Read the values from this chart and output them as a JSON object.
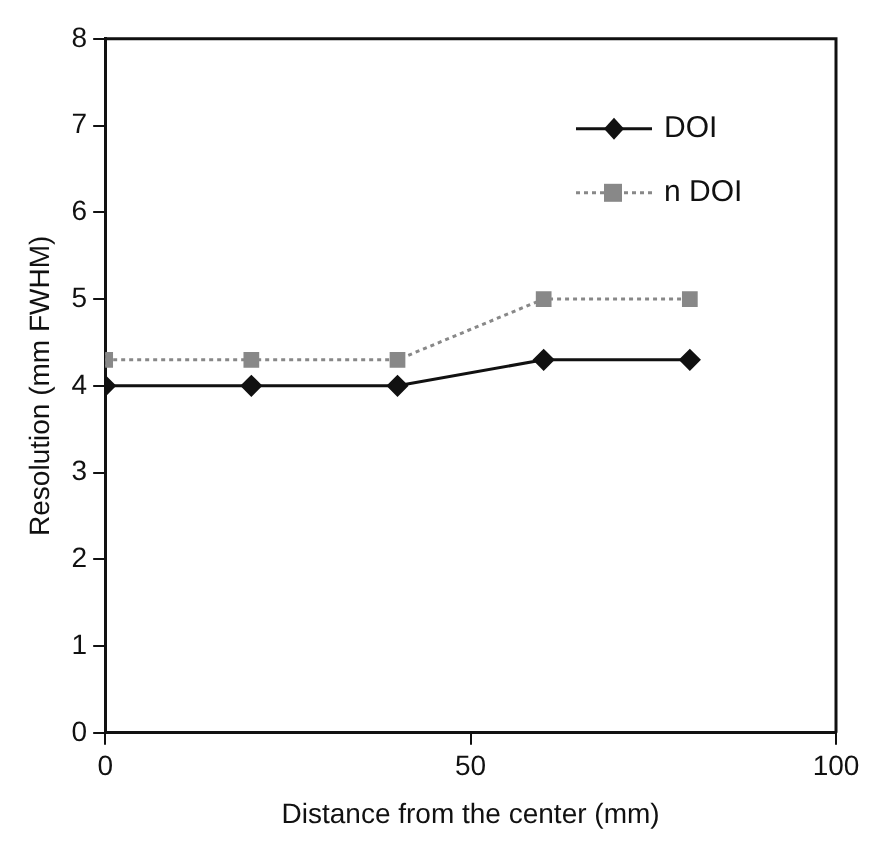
{
  "chart_data": {
    "type": "line",
    "xlabel": "Distance from the center (mm)",
    "ylabel": "Resolution (mm FWHM)",
    "x": [
      0,
      20,
      40,
      60,
      80
    ],
    "series": [
      {
        "name": "DOI",
        "color": "#111111",
        "values": [
          4.0,
          4.0,
          4.0,
          4.3,
          4.3
        ],
        "marker": "diamond",
        "line_style": "solid"
      },
      {
        "name": "n DOI",
        "color": "#888888",
        "values": [
          4.3,
          4.3,
          4.3,
          5.0,
          5.0
        ],
        "marker": "square",
        "line_style": "dotted"
      }
    ],
    "xlim": [
      0,
      100
    ],
    "xticks": [
      0,
      50,
      100
    ],
    "ylim": [
      0,
      8
    ],
    "yticks": [
      0,
      1,
      2,
      3,
      4,
      5,
      6,
      7,
      8
    ],
    "grid": false,
    "legend": "top right"
  }
}
